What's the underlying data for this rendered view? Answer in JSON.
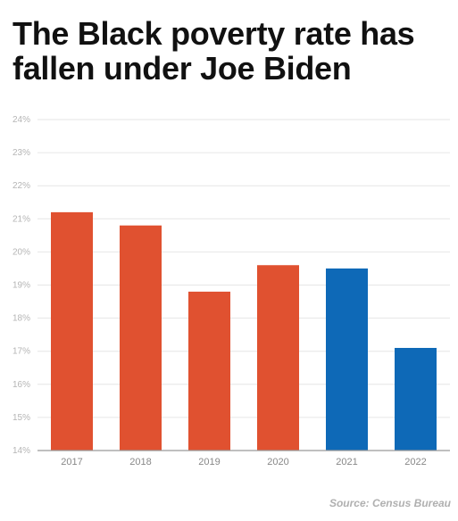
{
  "chart_data": {
    "type": "bar",
    "title": "The Black poverty rate has fallen under Joe Biden",
    "categories": [
      "2017",
      "2018",
      "2019",
      "2020",
      "2021",
      "2022"
    ],
    "values": [
      21.2,
      20.8,
      18.8,
      19.6,
      19.5,
      17.1
    ],
    "bar_colors": [
      "#e05130",
      "#e05130",
      "#e05130",
      "#e05130",
      "#0e69b7",
      "#0e69b7"
    ],
    "ylim": [
      14,
      24
    ],
    "y_ticks": [
      "14%",
      "15%",
      "16%",
      "17%",
      "18%",
      "19%",
      "20%",
      "21%",
      "22%",
      "23%",
      "24%"
    ],
    "grid": true,
    "xlabel": "",
    "ylabel": ""
  },
  "source": "Source: Census Bureau"
}
